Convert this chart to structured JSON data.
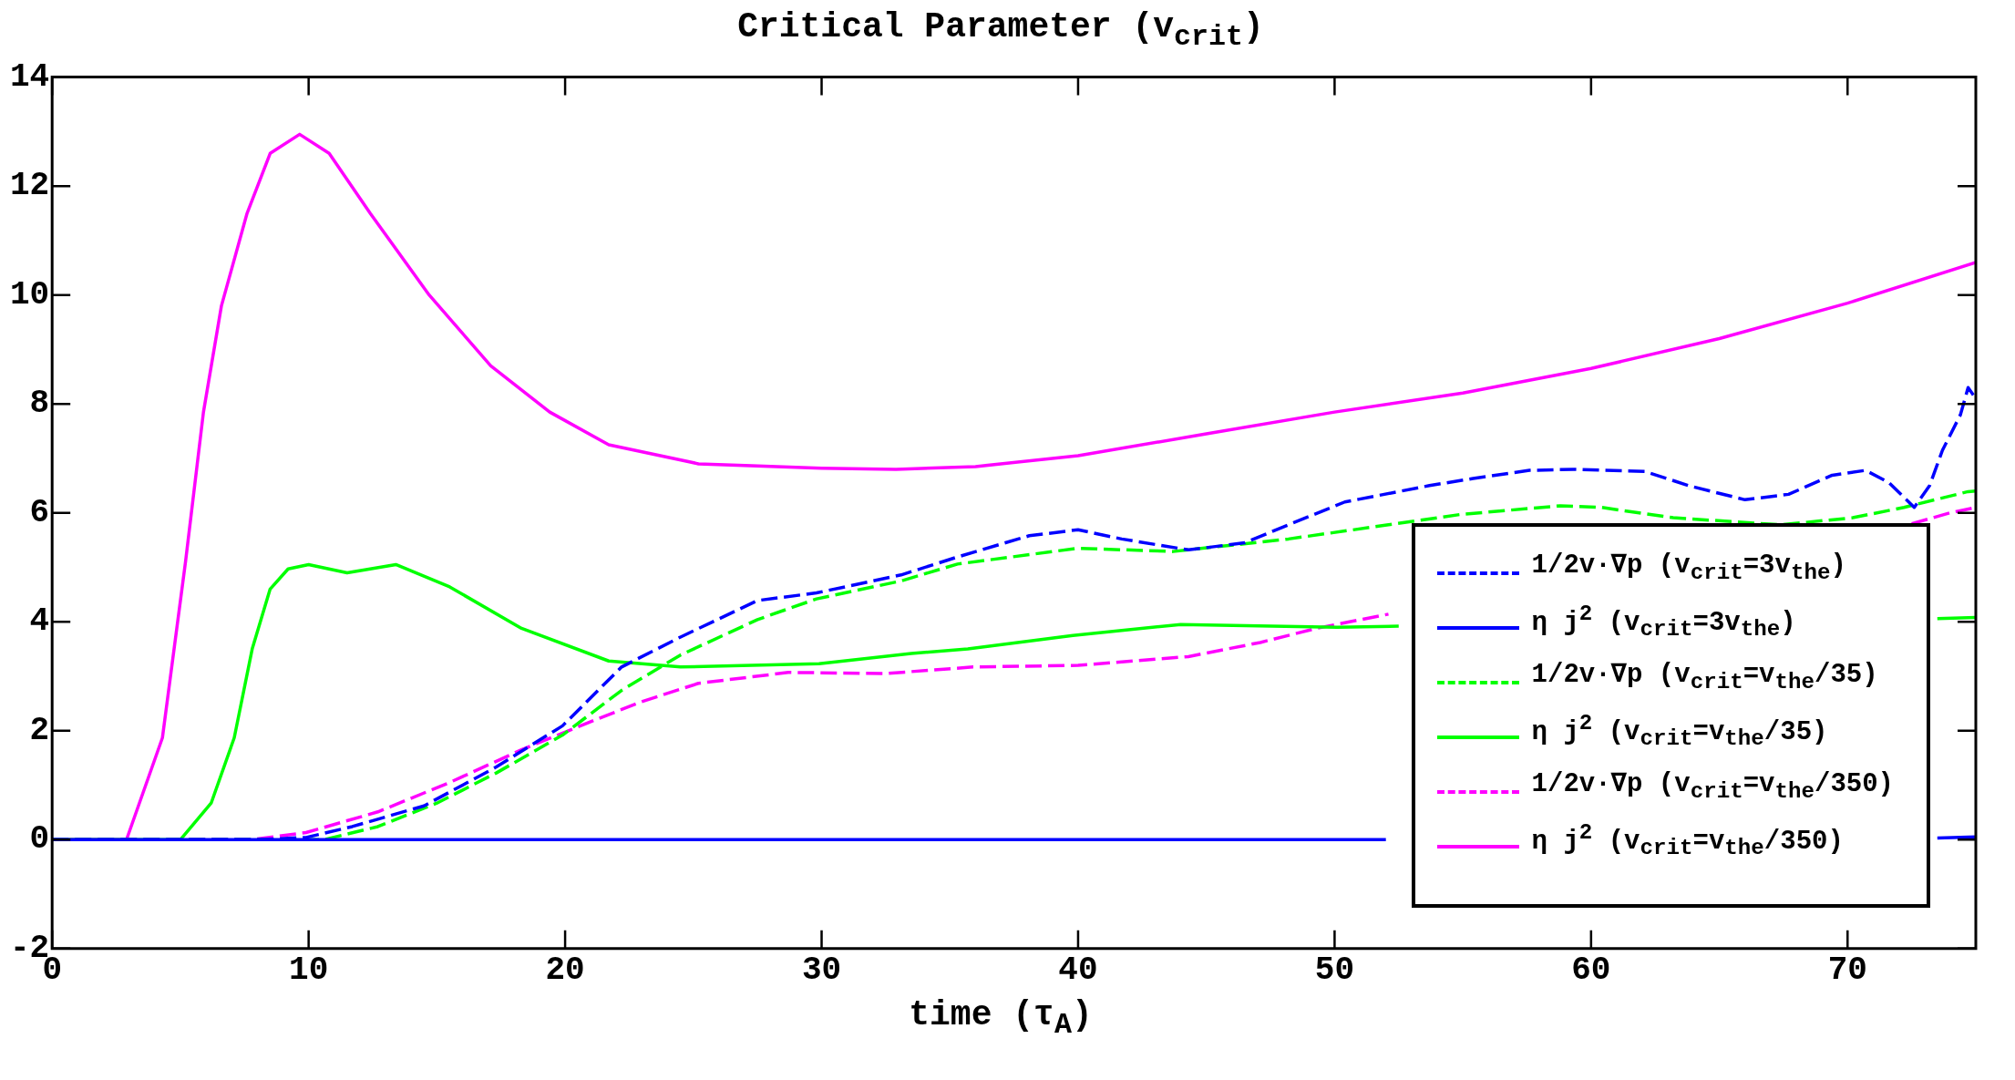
{
  "chart_data": {
    "type": "line",
    "title": "Critical Parameter (v$_{crit}$)",
    "xlabel": "time (τ$_{A}$)",
    "xlim": [
      0,
      75
    ],
    "xticks": [
      0,
      10,
      20,
      30,
      40,
      50,
      60,
      70
    ],
    "ylim": [
      -2,
      14
    ],
    "yticks": [
      -2,
      0,
      2,
      4,
      6,
      8,
      10,
      12,
      14
    ],
    "grid": false,
    "legend": "bottom right",
    "marker": "none",
    "series": [
      {
        "name": "1/2v·∇p (v$_{crit}$=3v$_{the}$)",
        "color": "#0000ff",
        "line_style": "dashed",
        "x": [
          0,
          8,
          9.9,
          11.7,
          14.5,
          17.3,
          19.9,
          22.2,
          24.5,
          27.5,
          29.8,
          33.1,
          35.3,
          38.1,
          40,
          41.7,
          44.3,
          46.5,
          48.2,
          50.4,
          53.7,
          55.4,
          57.6,
          59.3,
          62.1,
          63.8,
          66,
          67.7,
          69.4,
          70.7,
          71.6,
          72.6,
          73.2,
          73.7,
          74.4,
          74.7,
          75
        ],
        "values": [
          0,
          0,
          0.04,
          0.24,
          0.62,
          1.33,
          2.09,
          3.17,
          3.72,
          4.39,
          4.53,
          4.86,
          5.19,
          5.58,
          5.69,
          5.52,
          5.32,
          5.45,
          5.78,
          6.2,
          6.5,
          6.63,
          6.78,
          6.8,
          6.76,
          6.5,
          6.24,
          6.34,
          6.69,
          6.78,
          6.56,
          6.1,
          6.5,
          7.15,
          7.8,
          8.3,
          8.1
        ]
      },
      {
        "name": "η j$^{2}$ (v$_{crit}$=3v$_{the}$)",
        "color": "#0000ff",
        "line_style": "solid",
        "x": [
          0,
          10,
          20,
          30,
          40,
          52,
          53,
          73,
          73.5,
          75
        ],
        "values": [
          0,
          0,
          0,
          0,
          0,
          0,
          null,
          null,
          0.03,
          0.05
        ]
      },
      {
        "name": "1/2v·∇p (v$_{crit}$=v$_{the}$/35)",
        "color": "#00ff00",
        "line_style": "dashed",
        "x": [
          0,
          10.6,
          12.7,
          15,
          17.3,
          19.9,
          22.2,
          24.5,
          27.5,
          29.8,
          33.1,
          35.3,
          40,
          43.7,
          48.2,
          52.1,
          54.9,
          58.8,
          60.4,
          63.2,
          67.4,
          70.2,
          72.2,
          74.7,
          75
        ],
        "values": [
          0,
          0,
          0.24,
          0.67,
          1.22,
          1.92,
          2.74,
          3.39,
          4.04,
          4.42,
          4.75,
          5.06,
          5.35,
          5.29,
          5.52,
          5.78,
          5.97,
          6.13,
          6.1,
          5.91,
          5.78,
          5.91,
          6.1,
          6.39,
          6.4
        ]
      },
      {
        "name": "η j$^{2}$ (v$_{crit}$=v$_{the}$/35)",
        "color": "#00ff00",
        "line_style": "solid",
        "x": [
          0,
          5,
          6.2,
          7.1,
          7.8,
          8.5,
          9.2,
          10,
          11.5,
          13.4,
          15.5,
          18.3,
          21.7,
          24.5,
          29.9,
          33.5,
          35.7,
          39.8,
          44,
          50.1,
          52.5,
          53,
          73,
          73.5,
          75
        ],
        "values": [
          0,
          0,
          0.67,
          1.87,
          3.5,
          4.6,
          4.97,
          5.05,
          4.9,
          5.05,
          4.64,
          3.88,
          3.28,
          3.17,
          3.23,
          3.42,
          3.5,
          3.75,
          3.95,
          3.9,
          3.92,
          null,
          null,
          4.06,
          4.08
        ]
      },
      {
        "name": "1/2v·∇p (v$_{crit}$=v$_{the}$/350)",
        "color": "#ff00ff",
        "line_style": "dashed",
        "x": [
          0,
          7.8,
          9.9,
          12.7,
          15.5,
          18.3,
          20.6,
          22.9,
          25.2,
          28.7,
          32.5,
          35.9,
          40,
          44.3,
          47.1,
          49.3,
          52.1,
          53,
          71,
          72.5,
          74,
          75
        ],
        "values": [
          0,
          0,
          0.13,
          0.51,
          1.05,
          1.65,
          2.09,
          2.52,
          2.87,
          3.07,
          3.05,
          3.17,
          3.2,
          3.36,
          3.62,
          3.88,
          4.14,
          null,
          null,
          5.8,
          6,
          6.1
        ]
      },
      {
        "name": "η j$^{2}$ (v$_{crit}$=v$_{the}$/350)",
        "color": "#ff00ff",
        "line_style": "solid",
        "x": [
          0,
          2.9,
          4.3,
          5.2,
          5.9,
          6.6,
          7.6,
          8.5,
          9.65,
          10.8,
          12.4,
          14.7,
          17.1,
          19.4,
          21.7,
          25.2,
          30,
          32.9,
          36,
          40,
          45,
          50,
          55,
          60,
          65,
          70,
          75
        ],
        "values": [
          0,
          0,
          1.87,
          5.1,
          7.85,
          9.8,
          11.5,
          12.6,
          12.95,
          12.6,
          11.5,
          10,
          8.7,
          7.85,
          7.25,
          6.9,
          6.82,
          6.8,
          6.85,
          7.05,
          7.45,
          7.85,
          8.2,
          8.65,
          9.2,
          9.85,
          10.6
        ]
      }
    ]
  }
}
